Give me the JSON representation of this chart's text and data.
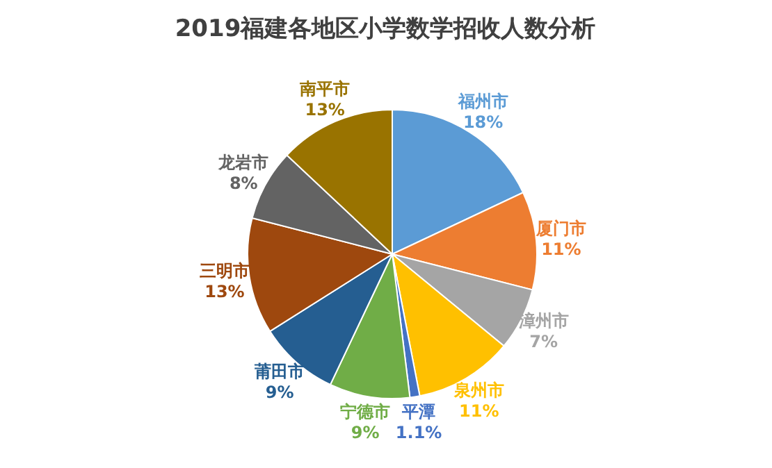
{
  "chart_data": {
    "type": "pie",
    "title": "2019福建各地区小学数学招收人数分析",
    "categories": [
      "福州市",
      "厦门市",
      "漳州市",
      "泉州市",
      "平潭",
      "宁德市",
      "莆田市",
      "三明市",
      "龙岩市",
      "南平市"
    ],
    "values": [
      18,
      11,
      7,
      11,
      1.1,
      9,
      9,
      13,
      8,
      13
    ],
    "value_labels": [
      "18%",
      "11%",
      "7%",
      "11%",
      "1.1%",
      "9%",
      "9%",
      "13%",
      "8%",
      "13%"
    ],
    "colors": [
      "#5b9bd5",
      "#ed7d31",
      "#a5a5a5",
      "#ffc000",
      "#4472c4",
      "#70ad47",
      "#255e91",
      "#9e480e",
      "#636363",
      "#997300"
    ],
    "legend": false
  }
}
